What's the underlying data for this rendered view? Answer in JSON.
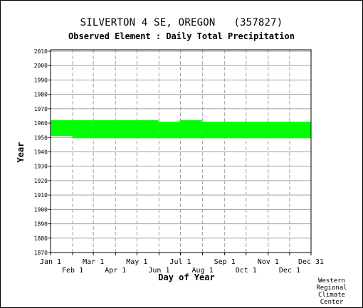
{
  "header": {
    "title": "SILVERTON 4 SE, OREGON   (357827)",
    "subtitle": "Observed Element : Daily Total Precipitation"
  },
  "credit": [
    "Western",
    "Regional",
    "Climate",
    "Center"
  ],
  "chart_data": {
    "type": "area",
    "xlabel": "Day of Year",
    "ylabel": "Year",
    "ylim": [
      1870,
      2011
    ],
    "xlim": [
      1,
      366
    ],
    "x_ticks_top_row": [
      {
        "label": "Jan 1",
        "day": 1
      },
      {
        "label": "Mar 1",
        "day": 61
      },
      {
        "label": "May 1",
        "day": 122
      },
      {
        "label": "Jul 1",
        "day": 183
      },
      {
        "label": "Sep 1",
        "day": 245
      },
      {
        "label": "Nov 1",
        "day": 306
      },
      {
        "label": "Dec 31",
        "day": 366
      }
    ],
    "x_ticks_bottom_row": [
      {
        "label": "Feb 1",
        "day": 32
      },
      {
        "label": "Apr 1",
        "day": 92
      },
      {
        "label": "Jun 1",
        "day": 153
      },
      {
        "label": "Aug 1",
        "day": 214
      },
      {
        "label": "Oct 1",
        "day": 275
      },
      {
        "label": "Dec 1",
        "day": 336
      }
    ],
    "y_ticks": [
      1870,
      1880,
      1890,
      1900,
      1910,
      1920,
      1930,
      1940,
      1950,
      1960,
      1970,
      1980,
      1990,
      2000,
      2010
    ],
    "grid": true,
    "fill_color": "#00ff00",
    "data_coverage": [
      {
        "start_day": 1,
        "end_day": 31,
        "from_year": 1951,
        "to_year": 1962
      },
      {
        "start_day": 32,
        "end_day": 59,
        "from_year": 1949.5,
        "to_year": 1962
      },
      {
        "start_day": 60,
        "end_day": 151,
        "from_year": 1949.5,
        "to_year": 1962
      },
      {
        "start_day": 152,
        "end_day": 181,
        "from_year": 1949.5,
        "to_year": 1961
      },
      {
        "start_day": 182,
        "end_day": 212,
        "from_year": 1949.5,
        "to_year": 1962
      },
      {
        "start_day": 213,
        "end_day": 366,
        "from_year": 1949.5,
        "to_year": 1961
      }
    ]
  }
}
